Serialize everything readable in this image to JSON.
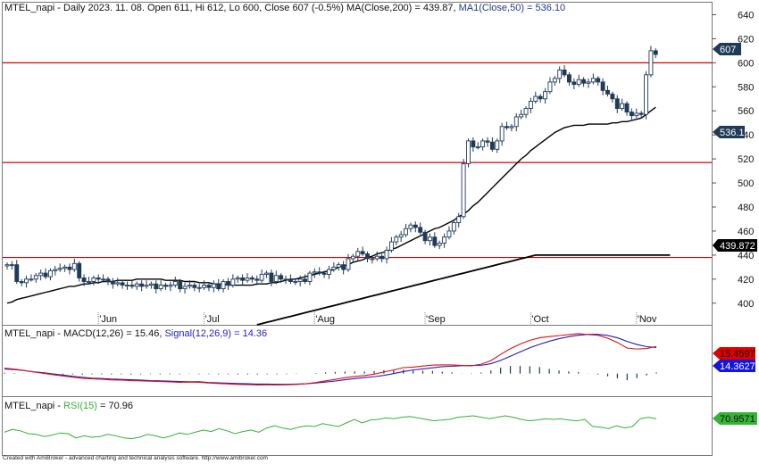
{
  "main_pane": {
    "title": "MTEL_napi - Daily 2023. 11. 08. Open 611, Hi 612, Lo 600, Close 607 (-0.5%) MA(Close,200) = 439.87,",
    "ma50_title": "MA1(Close,50) = 536.10",
    "price_badge": "607",
    "ma50_badge": "536.1",
    "ma200_badge": "439.872"
  },
  "macd_pane": {
    "title": "MTEL_napi - MACD(12,26) = 15.46,",
    "signal_title": "Signal(12,26,9) = 14.36",
    "macd_badge": "15.4597",
    "signal_badge": "14.3627"
  },
  "rsi_pane": {
    "title_prefix": "MTEL_napi -",
    "title_rsi": "RSI(15)",
    "title_value": "= 70.96",
    "rsi_badge": "70.9571"
  },
  "footer": "Created with AmiBroker - advanced charting and technical analysis software. http://www.amibroker.com",
  "colors": {
    "candle": "#1f3b57",
    "ma50": "#000000",
    "ma200": "#000000",
    "hline": "#d40000",
    "macd": "#e01010",
    "signal": "#1f1fbf",
    "rsi": "#34b334",
    "badge_dark": "#1f3b57",
    "badge_red": "#e00000",
    "badge_blue": "#1414e0",
    "badge_green": "#34b334"
  },
  "chart_data": [
    {
      "type": "candlestick",
      "title": "MTEL_napi - Daily 2023. 11. 08. Open 611, Hi 612, Lo 600, Close 607 (-0.5%)",
      "x_labels": [
        "Jun",
        "Jul",
        "Aug",
        "Sep",
        "Oct",
        "Nov"
      ],
      "y_ticks": [
        400,
        420,
        440,
        460,
        480,
        500,
        520,
        540,
        560,
        580,
        600,
        620,
        640
      ],
      "ylim": [
        382,
        650
      ],
      "horizontal_lines": [
        600,
        517,
        438
      ],
      "close": [
        432,
        432,
        418,
        417,
        420,
        420,
        423,
        425,
        422,
        427,
        428,
        429,
        430,
        428,
        433,
        421,
        418,
        418,
        421,
        420,
        420,
        418,
        416,
        417,
        415,
        415,
        414,
        416,
        414,
        415,
        416,
        412,
        415,
        414,
        415,
        418,
        412,
        414,
        415,
        413,
        413,
        415,
        413,
        416,
        412,
        418,
        415,
        420,
        421,
        419,
        421,
        420,
        419,
        424,
        425,
        418,
        423,
        420,
        420,
        418,
        418,
        420,
        418,
        425,
        426,
        425,
        424,
        428,
        430,
        432,
        428,
        437,
        439,
        443,
        441,
        437,
        437,
        439,
        437,
        444,
        451,
        455,
        457,
        462,
        465,
        463,
        459,
        452,
        455,
        448,
        450,
        455,
        460,
        467,
        472,
        516,
        535,
        530,
        530,
        535,
        534,
        528,
        535,
        547,
        546,
        547,
        555,
        557,
        562,
        568,
        572,
        570,
        576,
        584,
        587,
        594,
        590,
        584,
        582,
        586,
        583,
        584,
        587,
        584,
        577,
        574,
        570,
        562,
        566,
        559,
        556,
        558,
        557,
        590,
        610,
        607
      ],
      "ma50": [
        400,
        401,
        403,
        404,
        405,
        406,
        407,
        408,
        409,
        410,
        411,
        412,
        413,
        414,
        414,
        415,
        416,
        416,
        417,
        417,
        418,
        418,
        418,
        419,
        419,
        419,
        419,
        420,
        420,
        420,
        420,
        420,
        420,
        419,
        419,
        419,
        419,
        418,
        418,
        418,
        417,
        417,
        417,
        416,
        416,
        416,
        415,
        415,
        415,
        415,
        415,
        415,
        416,
        416,
        416,
        417,
        417,
        418,
        419,
        420,
        420,
        421,
        422,
        423,
        424,
        425,
        426,
        427,
        428,
        430,
        431,
        432,
        434,
        435,
        436,
        438,
        439,
        441,
        442,
        443,
        445,
        446,
        448,
        450,
        452,
        454,
        456,
        458,
        460,
        462,
        463,
        465,
        467,
        469,
        472,
        474,
        477,
        481,
        484,
        488,
        492,
        496,
        500,
        504,
        508,
        512,
        516,
        520,
        523,
        527,
        530,
        533,
        536,
        539,
        542,
        544,
        546,
        547,
        548,
        548,
        548,
        549,
        549,
        549,
        549,
        549,
        550,
        550,
        551,
        551,
        552,
        553,
        554,
        557,
        560,
        563
      ],
      "ma200_visible_from_index": 52,
      "ma200": [
        382,
        383,
        384,
        385,
        386,
        387,
        388,
        389,
        390,
        391,
        392,
        393,
        394,
        395,
        396,
        397,
        398,
        399,
        400,
        401,
        402,
        403,
        404,
        405,
        406,
        407,
        408,
        409,
        410,
        411,
        412,
        413,
        414,
        415,
        416,
        417,
        418,
        419,
        420,
        421,
        422,
        423,
        424,
        425,
        426,
        427,
        428,
        429,
        430,
        431,
        432,
        433,
        434,
        435,
        436,
        437,
        438,
        439,
        440,
        440,
        440,
        440,
        440,
        440,
        440,
        440,
        440,
        440,
        440,
        440,
        440,
        440,
        440,
        440,
        440,
        440,
        440,
        440,
        440,
        440,
        440,
        440,
        440,
        440,
        440,
        440,
        440
      ]
    },
    {
      "type": "line",
      "title": "MACD(12,26) = 15.46, Signal(12,26,9) = 14.36",
      "series": [
        {
          "name": "MACD(12,26)",
          "values": [
            3,
            2.5,
            1.8,
            0.9,
            0.2,
            -0.6,
            -1.3,
            -2,
            -2.6,
            -2.9,
            -3.1,
            -3.5,
            -3.6,
            -3.9,
            -4,
            -4.2,
            -4.4,
            -4.6,
            -4.8,
            -4.7,
            -4.8,
            -5.2,
            -5.5,
            -5.7,
            -6,
            -6.1,
            -6.3,
            -6.2,
            -6.3,
            -6.2,
            -6,
            -5.6,
            -4.9,
            -4,
            -3.2,
            -2.3,
            -1.6,
            -1.1,
            -0.3,
            0.9,
            2,
            3.3,
            3.6,
            4.2,
            4.7,
            4.8,
            4.8,
            4.5,
            4.3,
            5.2,
            7.2,
            10.6,
            13.8,
            16.3,
            18.4,
            19.8,
            20.5,
            21,
            21.6,
            22.1,
            21.6,
            21.2,
            19.6,
            17.2,
            14.1,
            13.6,
            13.9,
            15
          ]
        },
        {
          "name": "Signal(12,26,9)",
          "values": [
            2.5,
            2.2,
            1.7,
            1,
            0.5,
            -0.2,
            -0.8,
            -1.5,
            -2,
            -2.5,
            -2.7,
            -3,
            -3.2,
            -3.4,
            -3.6,
            -3.9,
            -4,
            -4.2,
            -4.4,
            -4.5,
            -4.5,
            -4.9,
            -5.1,
            -5.3,
            -5.5,
            -5.6,
            -5.8,
            -5.8,
            -5.9,
            -5.9,
            -5.8,
            -5.6,
            -5.2,
            -4.7,
            -4.1,
            -3.4,
            -2.8,
            -2.2,
            -1.7,
            -1,
            0,
            1.1,
            2,
            2.6,
            3.2,
            3.8,
            4.1,
            4.4,
            4.5,
            4.6,
            5.5,
            7.3,
            9.6,
            12,
            14.3,
            16.2,
            17.9,
            19.3,
            20.4,
            21.2,
            21.7,
            21.7,
            21.1,
            19.8,
            17.8,
            16.1,
            14.9,
            14.4
          ]
        }
      ],
      "histogram": [
        0.5,
        0.3,
        0.1,
        -0.1,
        -0.3,
        -0.4,
        -0.5,
        -0.5,
        -0.6,
        -0.4,
        -0.4,
        -0.5,
        -0.4,
        -0.5,
        -0.4,
        -0.3,
        -0.4,
        -0.4,
        -0.4,
        -0.2,
        -0.3,
        -0.3,
        -0.4,
        -0.4,
        -0.5,
        -0.5,
        -0.5,
        -0.4,
        -0.4,
        -0.3,
        -0.2,
        0,
        0.3,
        0.7,
        0.9,
        1.1,
        1.2,
        1.1,
        1.4,
        1.9,
        2,
        2.2,
        1.6,
        1.6,
        1.5,
        1,
        0.7,
        0.1,
        -0.2,
        0.6,
        1.7,
        3.3,
        4.2,
        4.3,
        4.1,
        3.6,
        2.6,
        1.7,
        1.2,
        0.9,
        -0.1,
        -0.5,
        -1.5,
        -2.6,
        -3.7,
        -2.5,
        -1,
        0.6
      ],
      "ylim": [
        -12,
        26
      ]
    },
    {
      "type": "line",
      "title": "RSI(15) = 70.96",
      "series": [
        {
          "name": "RSI(15)",
          "values": [
            52,
            56,
            54,
            50,
            49,
            46,
            48,
            51,
            50,
            44,
            47,
            45,
            46,
            49,
            47,
            44,
            43,
            45,
            49,
            47,
            44,
            47,
            51,
            49,
            52,
            55,
            53,
            57,
            54,
            50,
            53,
            55,
            52,
            58,
            61,
            58,
            56,
            59,
            61,
            60,
            64,
            62,
            60,
            65,
            70,
            65,
            69,
            70,
            72,
            71,
            73,
            74,
            72,
            70,
            68,
            69,
            70,
            73,
            74,
            75,
            73,
            71,
            73,
            75,
            73,
            70,
            68,
            69,
            71,
            70,
            71,
            69,
            68,
            70,
            60,
            59,
            57,
            61,
            58,
            60,
            71,
            73,
            71
          ]
        }
      ],
      "ylim": [
        20,
        100
      ]
    }
  ]
}
